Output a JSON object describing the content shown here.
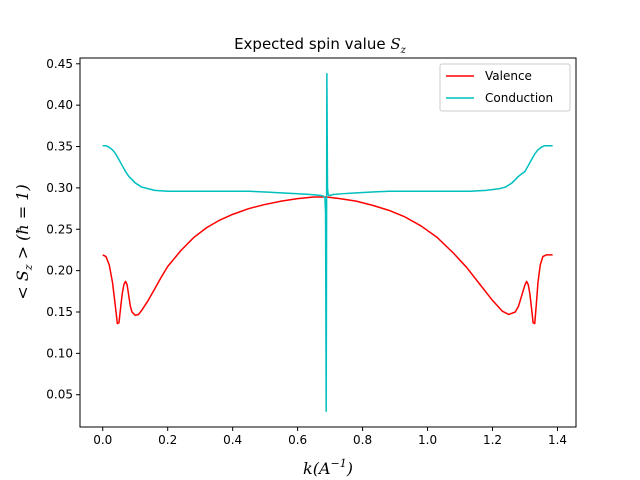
{
  "chart_data": {
    "type": "line",
    "title": "Expected spin value S_z",
    "title_parts": {
      "main": "Expected spin value ",
      "symbol": "S",
      "subscript": "z"
    },
    "xlabel": "k(A^{-1})",
    "xlabel_parts": {
      "main": "k(A",
      "sup": "−1",
      "close": ")"
    },
    "ylabel": "< S_z > (ħ = 1)",
    "ylabel_parts": {
      "open": "< S",
      "sub": "z",
      "close": " > (ħ = 1)"
    },
    "xlim": [
      -0.07,
      1.457
    ],
    "ylim": [
      0.011,
      0.457
    ],
    "xticks": [
      0.0,
      0.2,
      0.4,
      0.6,
      0.8,
      1.0,
      1.2,
      1.4
    ],
    "xtick_labels": [
      "0.0",
      "0.2",
      "0.4",
      "0.6",
      "0.8",
      "1.0",
      "1.2",
      "1.4"
    ],
    "yticks": [
      0.05,
      0.1,
      0.15,
      0.2,
      0.25,
      0.3,
      0.35,
      0.4,
      0.45
    ],
    "ytick_labels": [
      "0.05",
      "0.10",
      "0.15",
      "0.20",
      "0.25",
      "0.30",
      "0.35",
      "0.40",
      "0.45"
    ],
    "grid": false,
    "legend_position": "top-right",
    "series": [
      {
        "name": "Valence",
        "color": "#ff0000",
        "x": [
          0.0,
          0.01,
          0.02,
          0.03,
          0.038,
          0.045,
          0.05,
          0.055,
          0.06,
          0.065,
          0.07,
          0.075,
          0.08,
          0.085,
          0.09,
          0.1,
          0.11,
          0.12,
          0.14,
          0.16,
          0.18,
          0.2,
          0.24,
          0.28,
          0.32,
          0.36,
          0.4,
          0.45,
          0.5,
          0.55,
          0.6,
          0.65,
          0.69,
          0.73,
          0.78,
          0.83,
          0.88,
          0.93,
          0.98,
          1.03,
          1.08,
          1.12,
          1.16,
          1.2,
          1.23,
          1.25,
          1.27,
          1.28,
          1.29,
          1.3,
          1.305,
          1.31,
          1.315,
          1.32,
          1.325,
          1.33,
          1.335,
          1.34,
          1.347,
          1.355,
          1.365,
          1.375,
          1.385
        ],
        "y": [
          0.219,
          0.217,
          0.207,
          0.186,
          0.16,
          0.136,
          0.137,
          0.155,
          0.172,
          0.183,
          0.187,
          0.183,
          0.17,
          0.157,
          0.15,
          0.146,
          0.147,
          0.152,
          0.164,
          0.178,
          0.192,
          0.205,
          0.224,
          0.24,
          0.252,
          0.261,
          0.268,
          0.275,
          0.28,
          0.284,
          0.287,
          0.289,
          0.289,
          0.287,
          0.284,
          0.279,
          0.273,
          0.265,
          0.254,
          0.24,
          0.221,
          0.204,
          0.184,
          0.164,
          0.151,
          0.147,
          0.15,
          0.157,
          0.17,
          0.183,
          0.187,
          0.183,
          0.172,
          0.155,
          0.137,
          0.136,
          0.16,
          0.186,
          0.207,
          0.217,
          0.219,
          0.219,
          0.219
        ]
      },
      {
        "name": "Conduction",
        "color": "#00bfbf",
        "x": [
          0.0,
          0.01,
          0.02,
          0.03,
          0.04,
          0.05,
          0.06,
          0.07,
          0.08,
          0.1,
          0.12,
          0.14,
          0.16,
          0.2,
          0.25,
          0.3,
          0.35,
          0.4,
          0.45,
          0.5,
          0.55,
          0.6,
          0.64,
          0.67,
          0.68,
          0.684,
          0.686,
          0.688,
          0.69,
          0.692,
          0.694,
          0.696,
          0.7,
          0.71,
          0.74,
          0.78,
          0.83,
          0.88,
          0.93,
          0.98,
          1.03,
          1.08,
          1.13,
          1.18,
          1.22,
          1.24,
          1.26,
          1.28,
          1.3,
          1.31,
          1.32,
          1.33,
          1.34,
          1.35,
          1.36,
          1.37,
          1.385
        ],
        "y": [
          0.351,
          0.351,
          0.349,
          0.346,
          0.341,
          0.334,
          0.327,
          0.32,
          0.314,
          0.306,
          0.301,
          0.299,
          0.297,
          0.296,
          0.296,
          0.296,
          0.296,
          0.296,
          0.296,
          0.295,
          0.294,
          0.293,
          0.292,
          0.291,
          0.29,
          0.288,
          0.27,
          0.03,
          0.438,
          0.3,
          0.292,
          0.291,
          0.291,
          0.292,
          0.293,
          0.294,
          0.295,
          0.296,
          0.296,
          0.296,
          0.296,
          0.296,
          0.296,
          0.297,
          0.299,
          0.301,
          0.306,
          0.314,
          0.32,
          0.327,
          0.334,
          0.341,
          0.346,
          0.349,
          0.351,
          0.351,
          0.351
        ]
      }
    ]
  }
}
